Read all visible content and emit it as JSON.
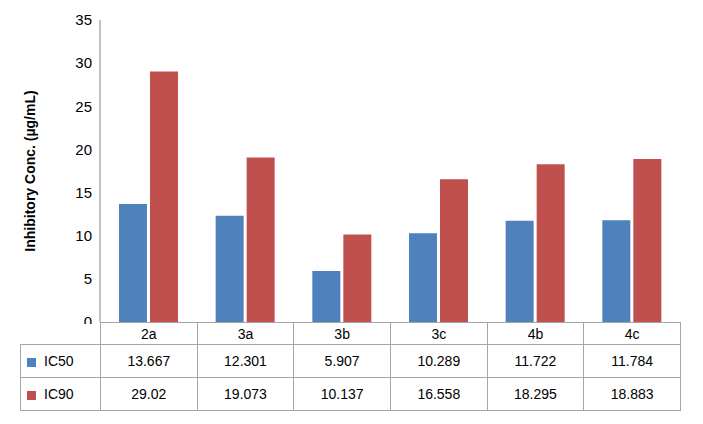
{
  "chart_data": {
    "type": "bar",
    "categories": [
      "2a",
      "3a",
      "3b",
      "3c",
      "4b",
      "4c"
    ],
    "series": [
      {
        "name": "IC50",
        "color": "#4f81bd",
        "values": [
          13.667,
          12.301,
          5.907,
          10.289,
          11.722,
          11.784
        ]
      },
      {
        "name": "IC90",
        "color": "#c0504d",
        "values": [
          29.02,
          19.073,
          10.137,
          16.558,
          18.295,
          18.883
        ]
      }
    ],
    "y_label": "Inhibitory Conc. (µg/mL)",
    "ylim": [
      0,
      35
    ],
    "yticks": [
      0,
      5,
      10,
      15,
      20,
      25,
      30,
      35
    ],
    "grid": false
  }
}
